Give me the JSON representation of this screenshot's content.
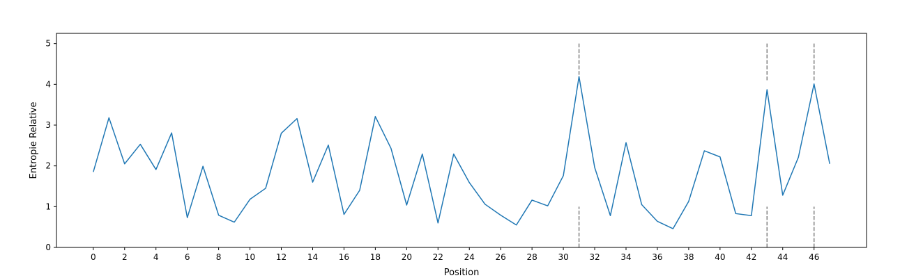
{
  "chart_data": {
    "type": "line",
    "title": "",
    "xlabel": "Position",
    "ylabel": "Entropie Relative",
    "xlim": [
      -2.35,
      49.35
    ],
    "ylim": [
      0,
      5.25
    ],
    "x_ticks": [
      0,
      2,
      4,
      6,
      8,
      10,
      12,
      14,
      16,
      18,
      20,
      22,
      24,
      26,
      28,
      30,
      32,
      34,
      36,
      38,
      40,
      42,
      44,
      46
    ],
    "y_ticks": [
      0,
      1,
      2,
      3,
      4,
      5
    ],
    "x_tick_labels": [
      "0",
      "2",
      "4",
      "6",
      "8",
      "10",
      "12",
      "14",
      "16",
      "18",
      "20",
      "22",
      "24",
      "26",
      "28",
      "30",
      "32",
      "34",
      "36",
      "38",
      "40",
      "42",
      "44",
      "46"
    ],
    "y_tick_labels": [
      "0",
      "1",
      "2",
      "3",
      "4",
      "5"
    ],
    "grid": false,
    "series": [
      {
        "color": "#1f77b4",
        "x": [
          0,
          1,
          2,
          3,
          4,
          5,
          6,
          7,
          8,
          9,
          10,
          11,
          12,
          13,
          14,
          15,
          16,
          17,
          18,
          19,
          20,
          21,
          22,
          23,
          24,
          25,
          26,
          27,
          28,
          29,
          30,
          31,
          32,
          33,
          34,
          35,
          36,
          37,
          38,
          39,
          40,
          41,
          42,
          43,
          44,
          45,
          46,
          47
        ],
        "values": [
          1.85,
          3.18,
          2.05,
          2.53,
          1.91,
          2.81,
          0.73,
          1.99,
          0.79,
          0.62,
          1.18,
          1.45,
          2.8,
          3.16,
          1.6,
          2.51,
          0.81,
          1.4,
          3.21,
          2.43,
          1.04,
          2.29,
          0.6,
          2.29,
          1.59,
          1.06,
          0.79,
          0.55,
          1.16,
          1.02,
          1.76,
          4.19,
          1.96,
          0.78,
          2.57,
          1.05,
          0.64,
          0.46,
          1.13,
          2.37,
          2.22,
          0.83,
          0.78,
          3.87,
          1.28,
          2.21,
          4.01,
          2.05
        ]
      }
    ],
    "markers": {
      "color": "#808080",
      "style": "dashed",
      "x": [
        31,
        43,
        46
      ],
      "segments": [
        [
          0,
          1
        ],
        [
          5,
          4.1
        ]
      ]
    }
  }
}
